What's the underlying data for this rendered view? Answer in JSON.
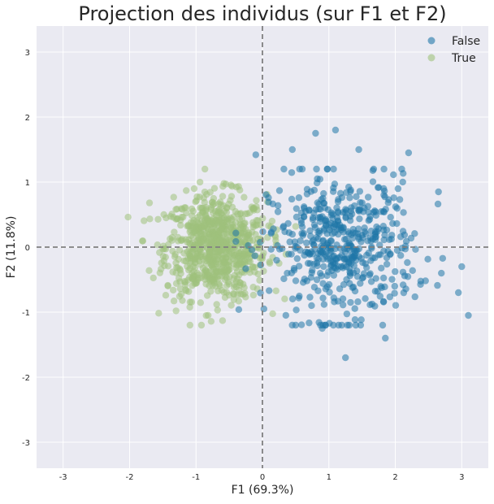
{
  "chart_data": {
    "type": "scatter",
    "title": "Projection des individus (sur F1 et F2)",
    "xlabel": "F1 (69.3%)",
    "ylabel": "F2 (11.8%)",
    "xlim": [
      -3.4,
      3.4
    ],
    "ylim": [
      -3.4,
      3.4
    ],
    "x_ticks": [
      -3,
      -2,
      -1,
      0,
      1,
      2,
      3
    ],
    "y_ticks": [
      -3,
      -2,
      -1,
      0,
      1,
      2,
      3
    ],
    "grid": true,
    "reference_lines": {
      "x": 0,
      "y": 0,
      "style": "dashed"
    },
    "legend": {
      "placement": "top-right"
    },
    "colors": {
      "background": "#eaeaf2",
      "grid": "#ffffff",
      "reference": "#808080",
      "False": "#1f77a8",
      "True": "#9fc17c"
    },
    "series": [
      {
        "name": "False",
        "center": [
          1.2,
          0.0
        ],
        "spread": [
          0.55,
          0.55
        ],
        "n_points": 520,
        "outliers": [
          [
            1.1,
            1.8
          ],
          [
            0.8,
            1.75
          ],
          [
            1.45,
            1.5
          ],
          [
            2.2,
            1.45
          ],
          [
            0.45,
            1.5
          ],
          [
            -0.1,
            1.42
          ],
          [
            2.65,
            0.85
          ],
          [
            3.1,
            -1.05
          ],
          [
            2.95,
            -0.7
          ],
          [
            1.25,
            -1.7
          ],
          [
            1.85,
            -1.4
          ],
          [
            0.9,
            -1.25
          ],
          [
            3.0,
            -0.3
          ]
        ]
      },
      {
        "name": "True",
        "center": [
          -0.7,
          0.0
        ],
        "spread": [
          0.38,
          0.4
        ],
        "n_points": 800,
        "outliers": [
          [
            -1.7,
            0.68
          ],
          [
            -0.55,
            0.97
          ],
          [
            -1.3,
            -0.98
          ],
          [
            -0.6,
            -1.13
          ],
          [
            -1.45,
            0.45
          ],
          [
            0.2,
            0.1
          ],
          [
            0.25,
            -0.25
          ]
        ]
      }
    ]
  }
}
